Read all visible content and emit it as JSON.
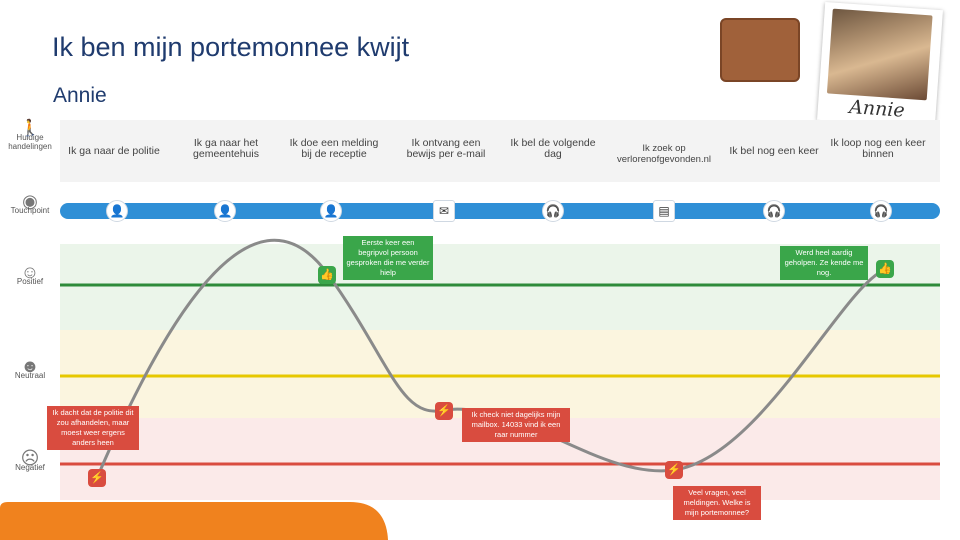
{
  "title": "Ik ben mijn portemonnee kwijt",
  "persona": "Annie",
  "photo_caption": "Annie",
  "row_labels": {
    "actions": "Huidige handelingen",
    "touchpoint": "Touchpoint",
    "positive": "Positief",
    "neutral": "Neutraal",
    "negative": "Negatief"
  },
  "steps": [
    "Ik ga naar de politie",
    "Ik ga naar het gemeentehuis",
    "Ik doe een melding bij de receptie",
    "Ik ontvang een bewijs per e-mail",
    "Ik bel de volgende dag",
    "Ik zoek op verlorenofgevonden.nl",
    "Ik bel nog een keer",
    "Ik loop nog een keer binnen"
  ],
  "touchpoints": [
    "person-icon",
    "person-icon",
    "person-icon",
    "email-icon",
    "headset-icon",
    "web-icon",
    "headset-icon",
    "headset-icon"
  ],
  "notes": {
    "n1": "Ik dacht dat de politie dit zou afhandelen, maar moest weer ergens anders heen",
    "n2": "Eerste keer een begripvol persoon gesproken die me verder hielp",
    "n3": "Ik check niet dagelijks mijn mailbox. 14033 vind ik een raar nummer",
    "n4": "Veel vragen, veel meldingen. Welke is mijn portemonnee?",
    "n5": "Werd heel aardig geholpen. Ze kende me nog."
  },
  "colors": {
    "title": "#1f3b6e",
    "timeline": "#2f8fd6",
    "positive_line": "#2e8b3a",
    "neutral_line": "#e6c800",
    "negative_line": "#d94c3f",
    "curve": "#8a8a8a"
  }
}
